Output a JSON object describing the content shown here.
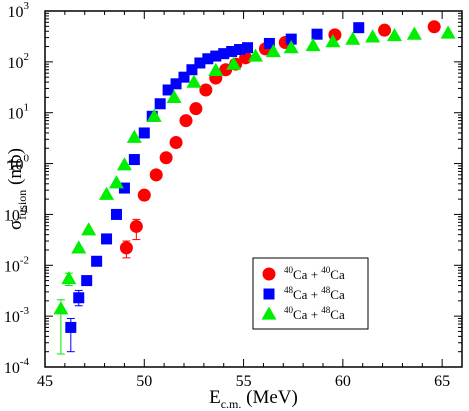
{
  "chart_data": {
    "type": "scatter",
    "xlabel": "E",
    "xlabel_sub": "c.m.",
    "xlabel_unit": " (MeV)",
    "ylabel": "σ",
    "ylabel_sub": "fusion",
    "ylabel_unit": " (mb)",
    "xlim": [
      45,
      66
    ],
    "ylim": [
      0.0001,
      1000
    ],
    "yscale": "log",
    "legend_position": "inside-bottom-right",
    "x_ticks": [
      45,
      50,
      55,
      60,
      65
    ],
    "y_ticks": [
      {
        "value": 0.0001,
        "mantissa": "10",
        "exp": "-4"
      },
      {
        "value": 0.001,
        "mantissa": "10",
        "exp": "-3"
      },
      {
        "value": 0.01,
        "mantissa": "10",
        "exp": "-2"
      },
      {
        "value": 0.1,
        "mantissa": "10",
        "exp": "-1"
      },
      {
        "value": 1,
        "mantissa": "10",
        "exp": "0"
      },
      {
        "value": 10,
        "mantissa": "10",
        "exp": "1"
      },
      {
        "value": 100,
        "mantissa": "10",
        "exp": "2"
      },
      {
        "value": 1000,
        "mantissa": "10",
        "exp": "3"
      }
    ],
    "series": [
      {
        "name_parts": {
          "a1": "40",
          "e1": "Ca + ",
          "a2": "40",
          "e2": "Ca"
        },
        "marker": "circle",
        "color": "#ff0000",
        "x": [
          49.1,
          49.6,
          50.0,
          50.6,
          51.1,
          51.6,
          52.1,
          52.6,
          53.1,
          53.6,
          54.1,
          54.6,
          55.1,
          56.1,
          57.1,
          59.6,
          62.1,
          64.6
        ],
        "y": [
          0.022,
          0.058,
          0.24,
          0.6,
          1.3,
          2.6,
          7.0,
          12,
          28,
          48,
          70,
          90,
          120,
          180,
          240,
          340,
          420,
          490
        ],
        "errors": [
          {
            "x": 49.1,
            "low": 0.014,
            "high": 0.03
          },
          {
            "x": 49.6,
            "low": 0.032,
            "high": 0.08
          }
        ]
      },
      {
        "name_parts": {
          "a1": "48",
          "e1": "Ca + ",
          "a2": "48",
          "e2": "Ca"
        },
        "marker": "square",
        "color": "#0000ff",
        "x": [
          46.3,
          46.7,
          47.1,
          47.6,
          48.1,
          48.6,
          49.0,
          49.5,
          50.0,
          50.4,
          50.8,
          51.2,
          51.6,
          52.0,
          52.4,
          52.8,
          53.2,
          53.6,
          54.0,
          54.4,
          54.8,
          55.2,
          56.3,
          57.4,
          58.7,
          60.8
        ],
        "y": [
          0.0006,
          0.0023,
          0.005,
          0.012,
          0.033,
          0.1,
          0.33,
          1.2,
          4.0,
          8.5,
          15,
          28,
          37,
          50,
          70,
          95,
          115,
          130,
          145,
          160,
          175,
          190,
          230,
          280,
          350,
          470
        ],
        "errors": [
          {
            "x": 46.3,
            "low": 0.0002,
            "high": 0.0009
          },
          {
            "x": 46.7,
            "low": 0.0016,
            "high": 0.0032
          }
        ]
      },
      {
        "name_parts": {
          "a1": "40",
          "e1": "Ca + ",
          "a2": "48",
          "e2": "Ca"
        },
        "marker": "triangle",
        "color": "#00ee00",
        "x": [
          45.8,
          46.2,
          46.7,
          47.2,
          48.1,
          48.6,
          49.0,
          49.5,
          50.5,
          51.5,
          52.5,
          53.6,
          54.5,
          55.6,
          56.5,
          57.4,
          58.5,
          59.5,
          60.5,
          61.5,
          62.6,
          63.6,
          65.3
        ],
        "y": [
          0.0014,
          0.0055,
          0.022,
          0.05,
          0.25,
          0.42,
          0.95,
          3.3,
          8.5,
          20,
          40,
          68,
          90,
          130,
          160,
          190,
          210,
          250,
          280,
          310,
          330,
          350,
          370
        ],
        "errors": [
          {
            "x": 45.8,
            "low": 0.00018,
            "high": 0.0021
          },
          {
            "x": 46.2,
            "low": 0.004,
            "high": 0.007
          }
        ]
      }
    ]
  }
}
